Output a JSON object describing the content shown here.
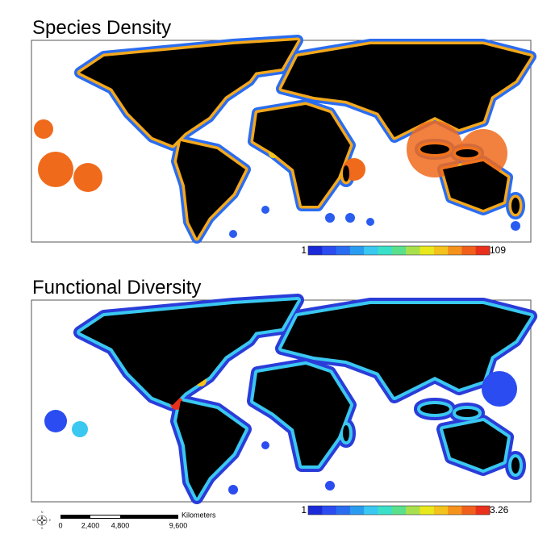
{
  "panels": [
    {
      "title": "Species Density",
      "legend": {
        "min": "1",
        "max": "109"
      }
    },
    {
      "title": "Functional Diversity",
      "legend": {
        "min": "1",
        "max": "3.26"
      }
    }
  ],
  "scale_bar": {
    "labels": [
      "0",
      "2,400",
      "4,800",
      "9,600"
    ],
    "unit": "Kilometers"
  },
  "compass": [
    "N",
    "E",
    "S",
    "W"
  ]
}
